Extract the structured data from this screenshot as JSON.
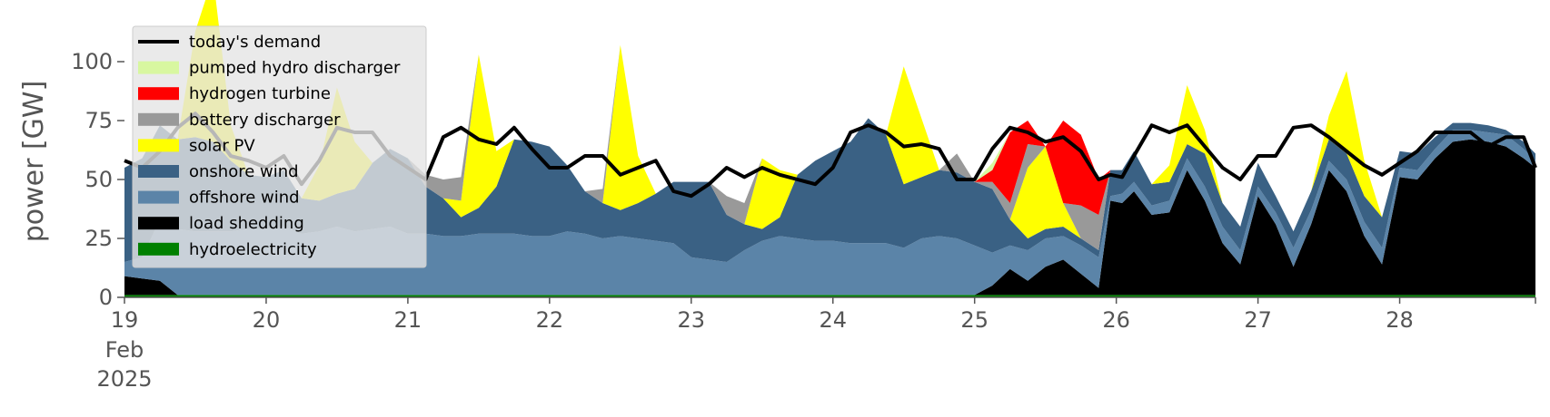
{
  "chart_data": {
    "type": "area",
    "title": "",
    "xlabel": "",
    "ylabel": "power [GW]",
    "xlim": [
      "2025-02-19",
      "2025-02-28 23:00"
    ],
    "ylim": [
      0,
      120
    ],
    "yticks": [
      0,
      25,
      50,
      75,
      100
    ],
    "yticklabels": [
      "0",
      "25",
      "50",
      "75",
      "100"
    ],
    "xticks": [
      "2025-02-19",
      "2025-02-20",
      "2025-02-21",
      "2025-02-22",
      "2025-02-23",
      "2025-02-24",
      "2025-02-25",
      "2025-02-26",
      "2025-02-27",
      "2025-02-28"
    ],
    "xticklabels": [
      "19",
      "20",
      "21",
      "22",
      "23",
      "24",
      "25",
      "26",
      "27",
      "28"
    ],
    "xtick_sublabels": [
      "Feb",
      "2025"
    ],
    "grid": false,
    "legend_position": "top-left",
    "resolution": "3h",
    "x": [
      "2025-02-19 00:00",
      "2025-02-19 03:00",
      "2025-02-19 06:00",
      "2025-02-19 09:00",
      "2025-02-19 12:00",
      "2025-02-19 15:00",
      "2025-02-19 18:00",
      "2025-02-19 21:00",
      "2025-02-20 00:00",
      "2025-02-20 03:00",
      "2025-02-20 06:00",
      "2025-02-20 09:00",
      "2025-02-20 12:00",
      "2025-02-20 15:00",
      "2025-02-20 18:00",
      "2025-02-20 21:00",
      "2025-02-21 00:00",
      "2025-02-21 03:00",
      "2025-02-21 06:00",
      "2025-02-21 09:00",
      "2025-02-21 12:00",
      "2025-02-21 15:00",
      "2025-02-21 18:00",
      "2025-02-21 21:00",
      "2025-02-22 00:00",
      "2025-02-22 03:00",
      "2025-02-22 06:00",
      "2025-02-22 09:00",
      "2025-02-22 12:00",
      "2025-02-22 15:00",
      "2025-02-22 18:00",
      "2025-02-22 21:00",
      "2025-02-23 00:00",
      "2025-02-23 03:00",
      "2025-02-23 06:00",
      "2025-02-23 09:00",
      "2025-02-23 12:00",
      "2025-02-23 15:00",
      "2025-02-23 18:00",
      "2025-02-23 21:00",
      "2025-02-24 00:00",
      "2025-02-24 03:00",
      "2025-02-24 06:00",
      "2025-02-24 09:00",
      "2025-02-24 12:00",
      "2025-02-24 15:00",
      "2025-02-24 18:00",
      "2025-02-24 21:00",
      "2025-02-25 00:00",
      "2025-02-25 03:00",
      "2025-02-25 06:00",
      "2025-02-25 09:00",
      "2025-02-25 12:00",
      "2025-02-25 15:00",
      "2025-02-25 18:00",
      "2025-02-25 21:00",
      "2025-02-25 23:00",
      "2025-02-26 01:00",
      "2025-02-26 03:00",
      "2025-02-26 06:00",
      "2025-02-26 09:00",
      "2025-02-26 12:00",
      "2025-02-26 15:00",
      "2025-02-26 18:00",
      "2025-02-26 21:00",
      "2025-02-27 00:00",
      "2025-02-27 03:00",
      "2025-02-27 06:00",
      "2025-02-27 09:00",
      "2025-02-27 12:00",
      "2025-02-27 15:00",
      "2025-02-27 18:00",
      "2025-02-27 21:00",
      "2025-02-28 00:00",
      "2025-02-28 03:00",
      "2025-02-28 06:00",
      "2025-02-28 09:00",
      "2025-02-28 12:00",
      "2025-02-28 15:00",
      "2025-02-28 18:00",
      "2025-02-28 21:00",
      "2025-02-28 23:00"
    ],
    "series": [
      {
        "name": "hydroelectricity",
        "color": "#008000",
        "values": [
          1,
          1,
          1,
          1,
          1,
          1,
          1,
          1,
          1,
          1,
          1,
          1,
          1,
          1,
          1,
          1,
          1,
          1,
          1,
          1,
          1,
          1,
          1,
          1,
          1,
          1,
          1,
          1,
          1,
          1,
          1,
          1,
          1,
          1,
          1,
          1,
          1,
          1,
          1,
          1,
          1,
          1,
          1,
          1,
          1,
          1,
          1,
          1,
          1,
          1,
          1,
          1,
          1,
          1,
          1,
          1,
          1,
          1,
          1,
          1,
          1,
          1,
          1,
          1,
          1,
          1,
          1,
          1,
          1,
          1,
          1,
          1,
          1,
          1,
          1,
          1,
          1,
          1,
          1,
          1,
          1,
          1
        ]
      },
      {
        "name": "load shedding",
        "color": "#000000",
        "values": [
          8,
          7,
          6,
          0,
          0,
          0,
          0,
          0,
          0,
          0,
          0,
          0,
          0,
          0,
          0,
          0,
          0,
          0,
          0,
          0,
          0,
          0,
          0,
          0,
          0,
          0,
          0,
          0,
          0,
          0,
          0,
          0,
          0,
          0,
          0,
          0,
          0,
          0,
          0,
          0,
          0,
          0,
          0,
          0,
          0,
          0,
          0,
          0,
          0,
          4,
          11,
          6,
          12,
          15,
          9,
          3,
          40,
          39,
          44,
          34,
          35,
          53,
          40,
          22,
          13,
          42,
          30,
          12,
          30,
          53,
          44,
          25,
          13,
          50,
          49,
          58,
          65,
          66,
          65,
          63,
          58,
          54
        ]
      },
      {
        "name": "offshore wind",
        "color": "#5b84a8",
        "values": [
          6,
          9,
          26,
          28,
          27,
          27,
          27,
          28,
          28,
          29,
          26,
          27,
          29,
          27,
          28,
          29,
          26,
          26,
          25,
          25,
          26,
          26,
          26,
          25,
          25,
          27,
          26,
          24,
          25,
          24,
          23,
          22,
          16,
          15,
          14,
          19,
          23,
          25,
          24,
          23,
          23,
          22,
          22,
          22,
          20,
          24,
          25,
          24,
          21,
          14,
          10,
          13,
          12,
          10,
          12,
          13,
          2,
          4,
          4,
          4,
          5,
          5,
          6,
          7,
          6,
          4,
          5,
          8,
          6,
          4,
          5,
          6,
          7,
          4,
          4,
          4,
          5,
          4,
          4,
          5,
          4,
          3
        ]
      },
      {
        "name": "onshore wind",
        "color": "#3a6184",
        "values": [
          40,
          42,
          40,
          38,
          40,
          38,
          30,
          23,
          22,
          24,
          15,
          13,
          14,
          18,
          28,
          33,
          32,
          20,
          16,
          8,
          11,
          20,
          40,
          40,
          38,
          28,
          18,
          15,
          11,
          15,
          20,
          26,
          32,
          33,
          20,
          11,
          5,
          8,
          27,
          34,
          38,
          43,
          53,
          46,
          27,
          26,
          28,
          28,
          27,
          27,
          11,
          5,
          4,
          4,
          3,
          3,
          11,
          10,
          13,
          9,
          8,
          6,
          14,
          10,
          10,
          10,
          7,
          7,
          8,
          9,
          11,
          11,
          13,
          7,
          7,
          5,
          3,
          3,
          3,
          2,
          3,
          3
        ]
      },
      {
        "name": "solar PV",
        "color": "#ffff00",
        "values": [
          0,
          0,
          0,
          0,
          45,
          70,
          15,
          0,
          0,
          0,
          0,
          15,
          45,
          20,
          0,
          0,
          0,
          0,
          0,
          7,
          65,
          15,
          0,
          0,
          0,
          0,
          0,
          0,
          70,
          20,
          0,
          0,
          0,
          0,
          0,
          0,
          30,
          20,
          0,
          0,
          0,
          0,
          0,
          0,
          50,
          25,
          0,
          0,
          0,
          0,
          0,
          30,
          35,
          10,
          0,
          0,
          0,
          0,
          0,
          0,
          7,
          25,
          10,
          0,
          0,
          0,
          0,
          0,
          0,
          10,
          35,
          15,
          0,
          0,
          0,
          0,
          0,
          0,
          0,
          0,
          0,
          0
        ]
      },
      {
        "name": "battery discharger",
        "color": "#999999",
        "values": [
          0,
          0,
          0,
          0,
          0,
          0,
          0,
          0,
          0,
          0,
          0,
          0,
          0,
          0,
          0,
          0,
          0,
          5,
          8,
          10,
          0,
          0,
          0,
          0,
          0,
          0,
          0,
          6,
          0,
          0,
          0,
          0,
          0,
          0,
          8,
          9,
          0,
          0,
          0,
          0,
          0,
          0,
          0,
          0,
          0,
          0,
          0,
          8,
          0,
          3,
          7,
          10,
          0,
          0,
          14,
          15,
          0,
          0,
          0,
          0,
          0,
          0,
          0,
          0,
          0,
          0,
          0,
          0,
          0,
          0,
          0,
          0,
          0,
          0,
          0,
          0,
          0,
          0,
          0,
          0,
          0,
          0
        ]
      },
      {
        "name": "hydrogen turbine",
        "color": "#ff0000",
        "values": [
          0,
          0,
          0,
          0,
          0,
          0,
          0,
          0,
          0,
          0,
          0,
          0,
          0,
          0,
          0,
          0,
          0,
          0,
          0,
          0,
          0,
          0,
          0,
          0,
          0,
          0,
          0,
          0,
          0,
          0,
          0,
          0,
          0,
          0,
          0,
          0,
          0,
          0,
          0,
          0,
          0,
          0,
          0,
          0,
          0,
          0,
          0,
          0,
          0,
          5,
          30,
          10,
          0,
          35,
          30,
          15,
          0,
          0,
          0,
          0,
          0,
          0,
          0,
          0,
          0,
          0,
          0,
          0,
          0,
          0,
          0,
          0,
          0,
          0,
          0,
          0,
          0,
          0,
          0,
          0,
          0,
          0
        ]
      },
      {
        "name": "pumped hydro discharger",
        "color": "#d8f7a0",
        "values": [
          0,
          0,
          0,
          0,
          0,
          0,
          0,
          0,
          0,
          0,
          0,
          0,
          0,
          0,
          0,
          0,
          0,
          0,
          0,
          0,
          0,
          0,
          0,
          0,
          0,
          0,
          0,
          0,
          0,
          0,
          0,
          0,
          0,
          0,
          0,
          0,
          0,
          0,
          0,
          0,
          0,
          0,
          0,
          0,
          0,
          0,
          0,
          0,
          0,
          3,
          0,
          0,
          0,
          0,
          0,
          0,
          0,
          0,
          0,
          0,
          0,
          0,
          0,
          0,
          0,
          0,
          0,
          0,
          0,
          0,
          0,
          0,
          0,
          0,
          0,
          0,
          0,
          0,
          0,
          0,
          0,
          0
        ]
      }
    ],
    "demand": {
      "name": "today's demand",
      "color": "#000000",
      "values": [
        58,
        55,
        62,
        72,
        78,
        70,
        60,
        58,
        55,
        60,
        48,
        58,
        72,
        70,
        70,
        60,
        55,
        50,
        68,
        72,
        67,
        65,
        72,
        63,
        55,
        55,
        60,
        60,
        52,
        55,
        58,
        45,
        43,
        48,
        55,
        51,
        55,
        52,
        50,
        48,
        55,
        70,
        73,
        70,
        64,
        65,
        63,
        50,
        50,
        63,
        72,
        70,
        66,
        68,
        62,
        50,
        52,
        51,
        60,
        73,
        70,
        73,
        64,
        55,
        50,
        60,
        60,
        72,
        73,
        68,
        62,
        56,
        52,
        57,
        62,
        70,
        70,
        70,
        64,
        68,
        68,
        55
      ]
    },
    "legend_order": [
      "today's demand",
      "pumped hydro discharger",
      "hydrogen turbine",
      "battery discharger",
      "solar PV",
      "onshore wind",
      "offshore wind",
      "load shedding",
      "hydroelectricity"
    ]
  }
}
